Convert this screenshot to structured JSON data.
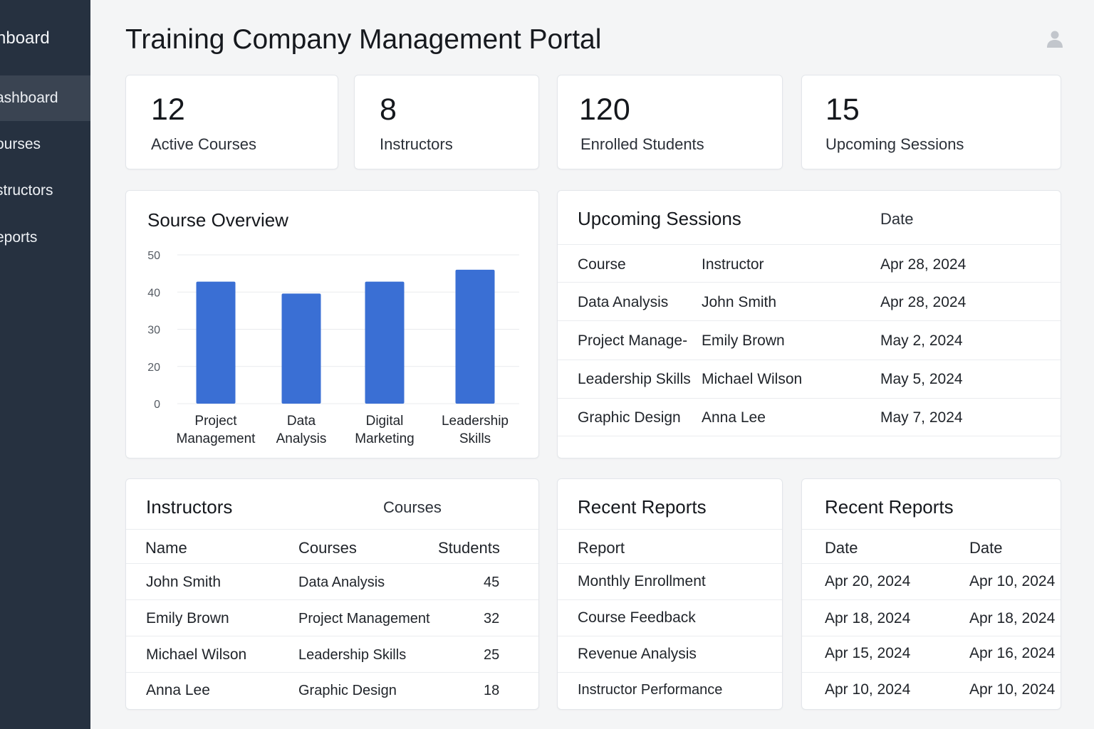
{
  "app": {
    "title": "Training Company Management Portal"
  },
  "sidebar": {
    "brand": "nboard",
    "items": [
      {
        "label": "ashboard",
        "active": true
      },
      {
        "label": "ourses"
      },
      {
        "label": "structors"
      },
      {
        "label": "eports"
      }
    ]
  },
  "header": {
    "user_icon": "user-icon"
  },
  "stats": [
    {
      "value": "12",
      "label": "Active Courses"
    },
    {
      "value": "8",
      "label": "Instructors"
    },
    {
      "value": "120",
      "label": "Enrolled Students"
    },
    {
      "value": "15",
      "label": "Upcoming Sessions"
    }
  ],
  "course_overview": {
    "title": "Sourse Overview"
  },
  "chart_data": {
    "type": "bar",
    "title": "Sourse Overview",
    "categories": [
      "Project Management",
      "Data Analysis",
      "Digital Marketing",
      "Leadership Skills"
    ],
    "category_lines": [
      [
        "Project",
        "Management"
      ],
      [
        "Data",
        "Analysis"
      ],
      [
        "Digital",
        "Marketing"
      ],
      [
        "Leadership",
        "Skills"
      ]
    ],
    "values": [
      41,
      37,
      41,
      45
    ],
    "yticks": [
      "0",
      "20",
      "30",
      "40",
      "50"
    ],
    "ylim": [
      0,
      50
    ],
    "grid": true,
    "bar_color": "#3a6fd4"
  },
  "upcoming_sessions": {
    "title": "Upcoming Sessions",
    "header_extra": "Date",
    "columns": [
      "Course",
      "Instructor",
      "Apr 28, 2024"
    ],
    "rows": [
      [
        "Data Analysis",
        "John Smith",
        "Apr 28, 2024"
      ],
      [
        "Project Manage-",
        "Emily Brown",
        "May 2, 2024"
      ],
      [
        "Leadership Skills",
        "Michael Wilson",
        "May 5, 2024"
      ],
      [
        "Graphic Design",
        "Anna Lee",
        "May 7, 2024"
      ]
    ]
  },
  "instructors": {
    "title": "Instructors",
    "header_extra": "Courses",
    "columns": [
      "Name",
      "Courses",
      "Students"
    ],
    "rows": [
      [
        "John Smith",
        "Data Analysis",
        "45"
      ],
      [
        "Emily Brown",
        "Project Management",
        "32"
      ],
      [
        "Michael Wilson",
        "Leadership Skills",
        "25"
      ],
      [
        "Anna Lee",
        "Graphic Design",
        "18"
      ]
    ]
  },
  "recent_reports": {
    "title": "Recent Reports",
    "column": "Report",
    "rows": [
      "Monthly Enrollment",
      "Course Feedback",
      "Revenue Analysis",
      "Instructor Performance"
    ]
  },
  "recent_reports_dates": {
    "title": "Recent Reports",
    "columns": [
      "Date",
      "Date"
    ],
    "rows": [
      [
        "Apr 20, 2024",
        "Apr 10, 2024"
      ],
      [
        "Apr 18, 2024",
        "Apr 18, 2024"
      ],
      [
        "Apr 15, 2024",
        "Apr 16, 2024"
      ],
      [
        "Apr 10, 2024",
        "Apr 10, 2024"
      ]
    ]
  }
}
